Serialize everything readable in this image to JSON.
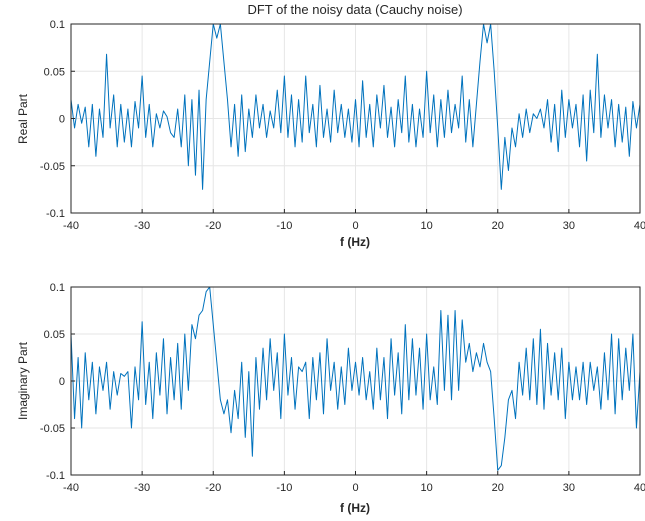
{
  "chart_data": [
    {
      "type": "line",
      "title": "DFT of the noisy data (Cauchy noise)",
      "xlabel": "f (Hz)",
      "ylabel": "Real Part",
      "xlim": [
        -40,
        40
      ],
      "ylim": [
        -0.1,
        0.1
      ],
      "xticks": [
        -40,
        -30,
        -20,
        -10,
        0,
        10,
        20,
        30,
        40
      ],
      "yticks": [
        0.1,
        0.05,
        0,
        -0.05,
        -0.1
      ],
      "xtick_labels": [
        "-40",
        "-30",
        "-20",
        "-10",
        "0",
        "10",
        "20",
        "30",
        "40"
      ],
      "ytick_labels": [
        "0.1",
        "0.05",
        "0",
        "-0.05",
        "-0.1"
      ],
      "grid": true,
      "color": "#0072bd",
      "series": [
        {
          "x": [
            -40,
            -39.5,
            -39,
            -38.5,
            -38,
            -37.5,
            -37,
            -36.5,
            -36,
            -35.5,
            -35,
            -34.5,
            -34,
            -33.5,
            -33,
            -32.5,
            -32,
            -31.5,
            -31,
            -30.5,
            -30,
            -29.5,
            -29,
            -28.5,
            -28,
            -27.5,
            -27,
            -26.5,
            -26,
            -25.5,
            -25,
            -24.5,
            -24,
            -23.5,
            -23,
            -22.5,
            -22,
            -21.5,
            -21,
            -20.5,
            -20,
            -19.5,
            -19,
            -18.5,
            -18,
            -17.5,
            -17,
            -16.5,
            -16,
            -15.5,
            -15,
            -14.5,
            -14,
            -13.5,
            -13,
            -12.5,
            -12,
            -11.5,
            -11,
            -10.5,
            -10,
            -9.5,
            -9,
            -8.5,
            -8,
            -7.5,
            -7,
            -6.5,
            -6,
            -5.5,
            -5,
            -4.5,
            -4,
            -3.5,
            -3,
            -2.5,
            -2,
            -1.5,
            -1,
            -0.5,
            0,
            0.5,
            1,
            1.5,
            2,
            2.5,
            3,
            3.5,
            4,
            4.5,
            5,
            5.5,
            6,
            6.5,
            7,
            7.5,
            8,
            8.5,
            9,
            9.5,
            10,
            10.5,
            11,
            11.5,
            12,
            12.5,
            13,
            13.5,
            14,
            14.5,
            15,
            15.5,
            16,
            16.5,
            17,
            17.5,
            18,
            18.5,
            19,
            19.5,
            20,
            20.5,
            21,
            21.5,
            22,
            22.5,
            23,
            23.5,
            24,
            24.5,
            25,
            25.5,
            26,
            26.5,
            27,
            27.5,
            28,
            28.5,
            29,
            29.5,
            30,
            30.5,
            31,
            31.5,
            32,
            32.5,
            33,
            33.5,
            34,
            34.5,
            35,
            35.5,
            36,
            36.5,
            37,
            37.5,
            38,
            38.5,
            39,
            39.5,
            40
          ],
          "y": [
            0.02,
            -0.01,
            0.015,
            -0.005,
            0.012,
            -0.03,
            0.015,
            -0.04,
            0.01,
            -0.02,
            0.068,
            -0.01,
            0.025,
            -0.03,
            0.015,
            -0.025,
            0.01,
            -0.03,
            0.018,
            -0.01,
            0.045,
            -0.02,
            0.015,
            -0.03,
            0.005,
            -0.01,
            0.008,
            0.002,
            -0.015,
            -0.02,
            0.01,
            -0.03,
            0.025,
            -0.05,
            0.02,
            -0.06,
            0.03,
            -0.075,
            0.02,
            0.06,
            0.1,
            0.085,
            0.1,
            0.06,
            0.02,
            -0.03,
            0.015,
            -0.04,
            0.025,
            -0.035,
            0.01,
            -0.02,
            0.025,
            -0.01,
            0.015,
            -0.02,
            0.008,
            -0.01,
            0.03,
            -0.015,
            0.045,
            -0.02,
            0.025,
            -0.03,
            0.02,
            -0.025,
            0.045,
            -0.015,
            0.015,
            -0.03,
            0.035,
            -0.02,
            0.01,
            -0.025,
            0.03,
            -0.015,
            0.015,
            -0.02,
            0.01,
            -0.025,
            0.02,
            -0.03,
            0.04,
            -0.02,
            0.015,
            -0.03,
            0.025,
            -0.01,
            0.035,
            -0.02,
            0.012,
            -0.03,
            0.02,
            -0.015,
            0.045,
            -0.025,
            0.015,
            -0.03,
            0.01,
            -0.02,
            0.05,
            -0.015,
            0.025,
            -0.03,
            0.02,
            -0.02,
            0.03,
            -0.015,
            0.015,
            -0.01,
            0.045,
            -0.025,
            0.02,
            -0.03,
            0.015,
            0.06,
            0.1,
            0.08,
            0.1,
            0.05,
            -0.01,
            -0.075,
            -0.02,
            -0.055,
            -0.01,
            -0.03,
            0.005,
            -0.02,
            0.01,
            -0.015,
            0.005,
            0.0,
            0.01,
            -0.01,
            0.02,
            -0.025,
            0.015,
            -0.035,
            0.03,
            -0.02,
            0.02,
            -0.01,
            0.015,
            -0.03,
            0.025,
            -0.045,
            0.03,
            -0.015,
            0.068,
            -0.02,
            0.025,
            -0.01,
            0.02,
            -0.03,
            0.015,
            -0.025,
            0.012,
            -0.04,
            0.018,
            -0.01,
            0.015
          ]
        }
      ]
    },
    {
      "type": "line",
      "title": "",
      "xlabel": "f (Hz)",
      "ylabel": "Imaginary Part",
      "xlim": [
        -40,
        40
      ],
      "ylim": [
        -0.1,
        0.1
      ],
      "xticks": [
        -40,
        -30,
        -20,
        -10,
        0,
        10,
        20,
        30,
        40
      ],
      "yticks": [
        0.1,
        0.05,
        0,
        -0.05,
        -0.1
      ],
      "xtick_labels": [
        "-40",
        "-30",
        "-20",
        "-10",
        "0",
        "10",
        "20",
        "30",
        "40"
      ],
      "ytick_labels": [
        "0.1",
        "0.05",
        "0",
        "-0.05",
        "-0.1"
      ],
      "grid": true,
      "color": "#0072bd",
      "series": [
        {
          "x": [
            -40,
            -39.5,
            -39,
            -38.5,
            -38,
            -37.5,
            -37,
            -36.5,
            -36,
            -35.5,
            -35,
            -34.5,
            -34,
            -33.5,
            -33,
            -32.5,
            -32,
            -31.5,
            -31,
            -30.5,
            -30,
            -29.5,
            -29,
            -28.5,
            -28,
            -27.5,
            -27,
            -26.5,
            -26,
            -25.5,
            -25,
            -24.5,
            -24,
            -23.5,
            -23,
            -22.5,
            -22,
            -21.5,
            -21,
            -20.5,
            -20,
            -19.5,
            -19,
            -18.5,
            -18,
            -17.5,
            -17,
            -16.5,
            -16,
            -15.5,
            -15,
            -14.5,
            -14,
            -13.5,
            -13,
            -12.5,
            -12,
            -11.5,
            -11,
            -10.5,
            -10,
            -9.5,
            -9,
            -8.5,
            -8,
            -7.5,
            -7,
            -6.5,
            -6,
            -5.5,
            -5,
            -4.5,
            -4,
            -3.5,
            -3,
            -2.5,
            -2,
            -1.5,
            -1,
            -0.5,
            0,
            0.5,
            1,
            1.5,
            2,
            2.5,
            3,
            3.5,
            4,
            4.5,
            5,
            5.5,
            6,
            6.5,
            7,
            7.5,
            8,
            8.5,
            9,
            9.5,
            10,
            10.5,
            11,
            11.5,
            12,
            12.5,
            13,
            13.5,
            14,
            14.5,
            15,
            15.5,
            16,
            16.5,
            17,
            17.5,
            18,
            18.5,
            19,
            19.5,
            20,
            20.5,
            21,
            21.5,
            22,
            22.5,
            23,
            23.5,
            24,
            24.5,
            25,
            25.5,
            26,
            26.5,
            27,
            27.5,
            28,
            28.5,
            29,
            29.5,
            30,
            30.5,
            31,
            31.5,
            32,
            32.5,
            33,
            33.5,
            34,
            34.5,
            35,
            35.5,
            36,
            36.5,
            37,
            37.5,
            38,
            38.5,
            39,
            39.5,
            40
          ],
          "y": [
            0.05,
            -0.04,
            0.025,
            -0.05,
            0.03,
            -0.02,
            0.02,
            -0.035,
            0.015,
            -0.01,
            0.02,
            -0.03,
            0.01,
            -0.015,
            0.008,
            0.005,
            0.01,
            -0.05,
            0.015,
            -0.02,
            0.063,
            -0.025,
            0.02,
            -0.04,
            0.03,
            -0.015,
            0.045,
            -0.035,
            0.025,
            -0.02,
            0.04,
            -0.03,
            0.05,
            -0.01,
            0.06,
            0.045,
            0.07,
            0.075,
            0.095,
            0.1,
            0.06,
            0.02,
            -0.02,
            -0.035,
            -0.02,
            -0.055,
            -0.01,
            -0.04,
            0.02,
            -0.06,
            0.01,
            -0.08,
            0.025,
            -0.03,
            0.035,
            -0.02,
            0.045,
            -0.01,
            0.03,
            -0.04,
            0.05,
            -0.015,
            0.025,
            -0.03,
            0.015,
            0.01,
            0.02,
            -0.04,
            0.025,
            -0.02,
            0.03,
            -0.035,
            0.045,
            -0.01,
            0.02,
            -0.03,
            0.015,
            -0.025,
            0.035,
            -0.01,
            0.02,
            -0.015,
            0.025,
            -0.02,
            0.01,
            -0.03,
            0.035,
            -0.02,
            0.025,
            -0.04,
            0.045,
            -0.015,
            0.03,
            -0.035,
            0.06,
            -0.02,
            0.045,
            -0.015,
            0.035,
            -0.03,
            0.05,
            -0.02,
            0.015,
            -0.025,
            0.075,
            -0.01,
            0.07,
            -0.02,
            0.075,
            -0.01,
            0.065,
            0.02,
            0.04,
            0.01,
            0.03,
            0.015,
            0.04,
            0.02,
            0.01,
            -0.04,
            -0.095,
            -0.09,
            -0.06,
            -0.02,
            -0.01,
            -0.04,
            0.02,
            -0.015,
            0.035,
            -0.02,
            0.045,
            -0.025,
            0.055,
            -0.03,
            0.04,
            -0.015,
            0.03,
            -0.02,
            0.035,
            -0.04,
            0.02,
            -0.02,
            0.015,
            -0.02,
            0.02,
            -0.025,
            0.02,
            -0.01,
            0.015,
            -0.03,
            0.03,
            -0.02,
            0.05,
            -0.035,
            0.045,
            -0.02,
            0.035,
            -0.01,
            0.05,
            -0.05,
            0.01
          ]
        }
      ]
    }
  ]
}
